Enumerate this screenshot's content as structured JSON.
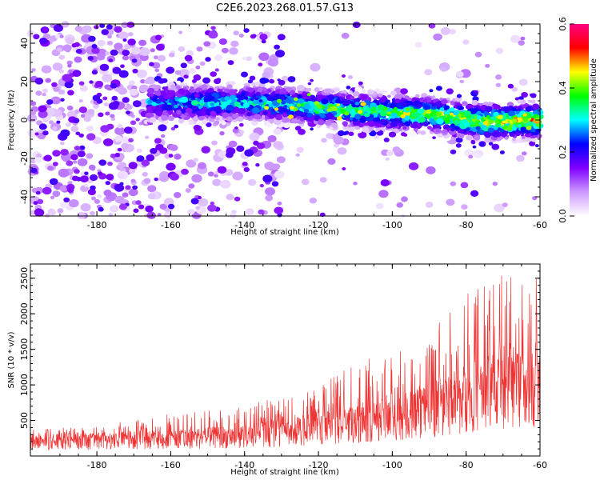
{
  "title": "C2E6.2023.268.01.57.G13",
  "chart_data": [
    {
      "type": "heatmap",
      "xlabel": "Height of straight line (km)",
      "ylabel": "Frequency (Hz)",
      "xlim": [
        -198,
        -60
      ],
      "ylim": [
        -50,
        50
      ],
      "x_ticks": [
        -180,
        -160,
        -140,
        -120,
        -100,
        -80,
        -60
      ],
      "y_ticks": [
        -40,
        -20,
        0,
        20,
        40
      ],
      "colorbar": {
        "label": "Normalized spectral amplitude",
        "range": [
          0.0,
          0.6
        ],
        "ticks": [
          "0.0",
          "0.2",
          "0.4",
          "0.6"
        ],
        "tick_values": [
          0.0,
          0.2,
          0.4,
          0.6
        ],
        "colors": [
          "#ffffff",
          "#cc99ff",
          "#8000ff",
          "#0000ff",
          "#00ffff",
          "#00ff00",
          "#ffff00",
          "#ff0000",
          "#ff0080"
        ]
      },
      "band": {
        "description": "Concentrated high-amplitude band near 0 Hz",
        "center_frequency_hz": [
          [
            -165,
            9
          ],
          [
            -140,
            9
          ],
          [
            -130,
            8
          ],
          [
            -110,
            5
          ],
          [
            -90,
            3
          ],
          [
            -75,
            -1
          ],
          [
            -60,
            0
          ]
        ],
        "dense_from_x": -165,
        "peak_amplitude": 0.6
      }
    },
    {
      "type": "line",
      "xlabel": "Height of straight line (km)",
      "ylabel": "SNR (10 * v/v)",
      "xlim": [
        -198,
        -60
      ],
      "ylim": [
        0,
        2700
      ],
      "x_ticks": [
        -180,
        -160,
        -140,
        -120,
        -100,
        -80,
        -60
      ],
      "y_ticks": [
        500,
        1000,
        1500,
        2000,
        2500
      ],
      "color": "#ee3333",
      "envelope": {
        "x": [
          -198,
          -180,
          -160,
          -140,
          -130,
          -120,
          -110,
          -100,
          -90,
          -85,
          -80,
          -75,
          -70,
          -65,
          -60
        ],
        "baseline": [
          200,
          210,
          230,
          280,
          320,
          380,
          450,
          520,
          620,
          700,
          800,
          880,
          950,
          900,
          1000
        ],
        "max": [
          380,
          420,
          600,
          700,
          850,
          1000,
          1300,
          1500,
          1700,
          2300,
          2500,
          2400,
          2700,
          2400,
          2650
        ]
      }
    }
  ]
}
